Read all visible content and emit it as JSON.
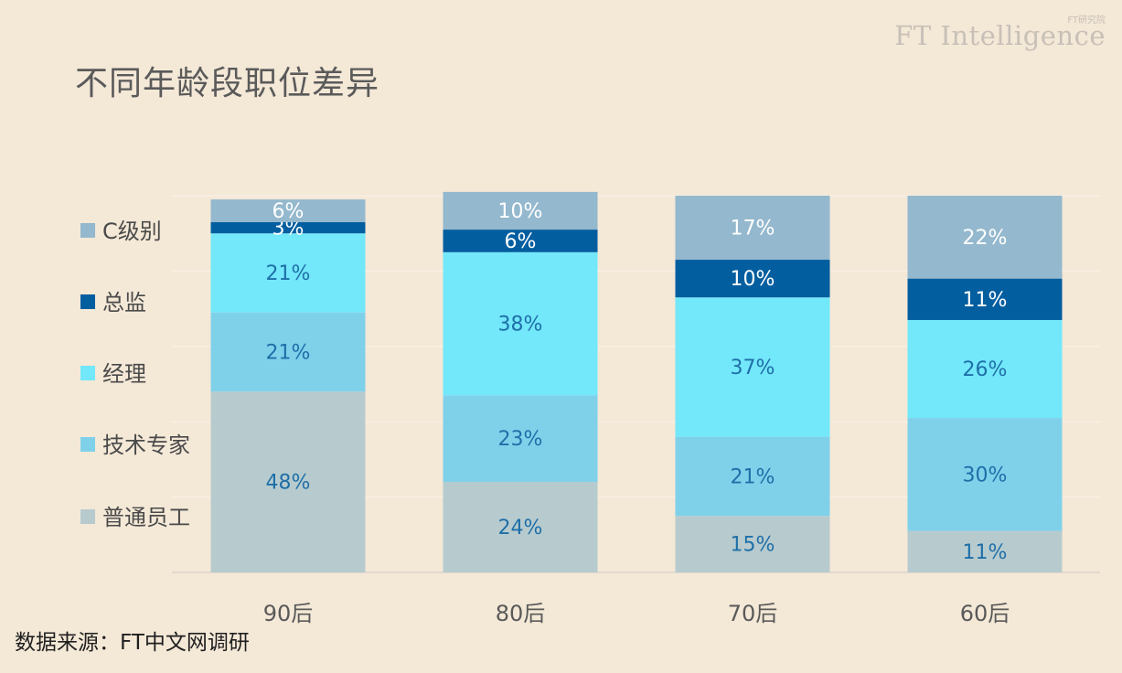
{
  "title": "不同年龄段职位差异",
  "brand": {
    "main": "FT Intelligence",
    "sub": "FT研究院"
  },
  "source": "数据来源：FT中文网调研",
  "chart_data": {
    "type": "bar",
    "stacked": true,
    "categories": [
      "90后",
      "80后",
      "70后",
      "60后"
    ],
    "ylim": [
      0,
      100
    ],
    "grid": true,
    "legend_position": "left",
    "series": [
      {
        "name": "普通员工",
        "values": [
          48,
          24,
          15,
          11
        ],
        "color": "#b7cbce",
        "label_color": "#1f6fa8"
      },
      {
        "name": "技术专家",
        "values": [
          21,
          23,
          21,
          30
        ],
        "color": "#7fd1ea",
        "label_color": "#1f6fa8"
      },
      {
        "name": "经理",
        "values": [
          21,
          38,
          37,
          26
        ],
        "color": "#72e8fa",
        "label_color": "#1f6fa8"
      },
      {
        "name": "总监",
        "values": [
          3,
          6,
          10,
          11
        ],
        "color": "#035ea0",
        "label_color": "#ffffff"
      },
      {
        "name": "C级别",
        "values": [
          6,
          10,
          17,
          22
        ],
        "color": "#94b8cd",
        "label_color": "#ffffff"
      }
    ],
    "data_labels": [
      [
        "48%",
        "24%",
        "15%",
        "11%"
      ],
      [
        "21%",
        "23%",
        "21%",
        "30%"
      ],
      [
        "21%",
        "38%",
        "37%",
        "26%"
      ],
      [
        "3%",
        "6%",
        "10%",
        "11%"
      ],
      [
        "6%",
        "10%",
        "17%",
        "22%"
      ]
    ]
  },
  "colors": {
    "background": "#f4e8d7",
    "gridline": "#faf2e8",
    "axis": "#dcd4cc"
  }
}
